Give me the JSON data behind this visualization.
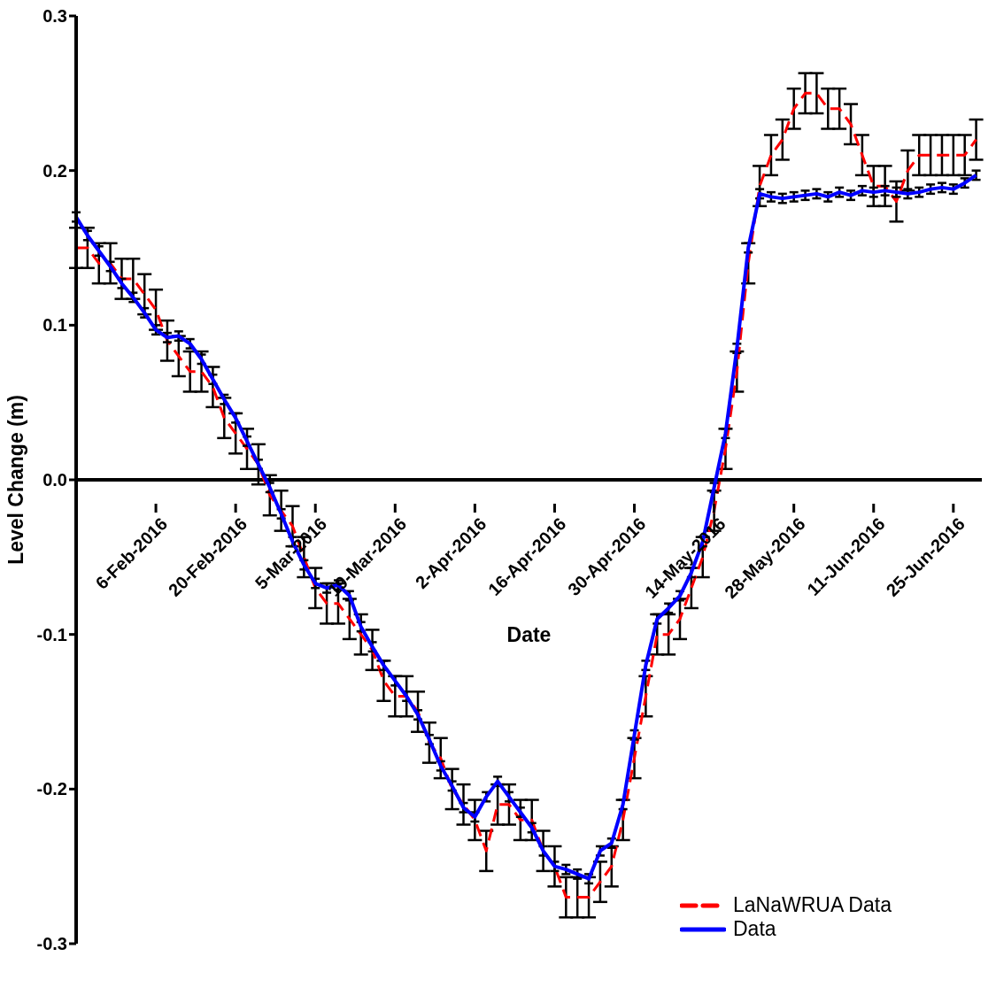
{
  "chart_data": {
    "type": "line",
    "xlabel": "Date",
    "ylabel": "Level Change (m)",
    "x": [
      "2016-01-23",
      "2016-01-25",
      "2016-01-27",
      "2016-01-29",
      "2016-01-31",
      "2016-02-02",
      "2016-02-04",
      "2016-02-06",
      "2016-02-08",
      "2016-02-10",
      "2016-02-12",
      "2016-02-14",
      "2016-02-16",
      "2016-02-18",
      "2016-02-20",
      "2016-02-22",
      "2016-02-24",
      "2016-02-26",
      "2016-02-28",
      "2016-03-01",
      "2016-03-03",
      "2016-03-05",
      "2016-03-07",
      "2016-03-09",
      "2016-03-11",
      "2016-03-13",
      "2016-03-15",
      "2016-03-17",
      "2016-03-19",
      "2016-03-21",
      "2016-03-23",
      "2016-03-25",
      "2016-03-27",
      "2016-03-29",
      "2016-03-31",
      "2016-04-02",
      "2016-04-04",
      "2016-04-06",
      "2016-04-08",
      "2016-04-10",
      "2016-04-12",
      "2016-04-14",
      "2016-04-16",
      "2016-04-18",
      "2016-04-20",
      "2016-04-22",
      "2016-04-24",
      "2016-04-26",
      "2016-04-28",
      "2016-04-30",
      "2016-05-02",
      "2016-05-04",
      "2016-05-06",
      "2016-05-08",
      "2016-05-10",
      "2016-05-12",
      "2016-05-14",
      "2016-05-16",
      "2016-05-18",
      "2016-05-20",
      "2016-05-22",
      "2016-05-24",
      "2016-05-26",
      "2016-05-28",
      "2016-05-30",
      "2016-06-01",
      "2016-06-03",
      "2016-06-05",
      "2016-06-07",
      "2016-06-09",
      "2016-06-11",
      "2016-06-13",
      "2016-06-15",
      "2016-06-17",
      "2016-06-19",
      "2016-06-21",
      "2016-06-23",
      "2016-06-25",
      "2016-06-27",
      "2016-06-29"
    ],
    "series": [
      {
        "name": "LaNaWRUA Data",
        "color": "#ff0000",
        "line_style": "dashed",
        "values": [
          0.15,
          0.15,
          0.14,
          0.14,
          0.13,
          0.13,
          0.12,
          0.11,
          0.09,
          0.08,
          0.07,
          0.07,
          0.06,
          0.04,
          0.03,
          0.02,
          0.01,
          -0.01,
          -0.02,
          -0.03,
          -0.05,
          -0.07,
          -0.08,
          -0.08,
          -0.09,
          -0.1,
          -0.11,
          -0.13,
          -0.14,
          -0.14,
          -0.15,
          -0.17,
          -0.18,
          -0.2,
          -0.21,
          -0.22,
          -0.24,
          -0.21,
          -0.21,
          -0.22,
          -0.22,
          -0.24,
          -0.25,
          -0.27,
          -0.27,
          -0.27,
          -0.26,
          -0.25,
          -0.22,
          -0.18,
          -0.14,
          -0.1,
          -0.1,
          -0.09,
          -0.07,
          -0.05,
          -0.02,
          0.02,
          0.07,
          0.14,
          0.19,
          0.21,
          0.22,
          0.24,
          0.25,
          0.25,
          0.24,
          0.24,
          0.23,
          0.21,
          0.19,
          0.19,
          0.18,
          0.2,
          0.21,
          0.21,
          0.21,
          0.21,
          0.21,
          0.22
        ],
        "errors": [
          0.013,
          0.013,
          0.013,
          0.013,
          0.013,
          0.013,
          0.013,
          0.013,
          0.013,
          0.013,
          0.013,
          0.013,
          0.013,
          0.013,
          0.013,
          0.013,
          0.013,
          0.013,
          0.013,
          0.013,
          0.013,
          0.013,
          0.013,
          0.013,
          0.013,
          0.013,
          0.013,
          0.013,
          0.013,
          0.013,
          0.013,
          0.013,
          0.013,
          0.013,
          0.013,
          0.013,
          0.013,
          0.013,
          0.013,
          0.013,
          0.013,
          0.013,
          0.013,
          0.013,
          0.013,
          0.013,
          0.013,
          0.013,
          0.013,
          0.013,
          0.013,
          0.013,
          0.013,
          0.013,
          0.013,
          0.013,
          0.013,
          0.013,
          0.013,
          0.013,
          0.013,
          0.013,
          0.013,
          0.013,
          0.013,
          0.013,
          0.013,
          0.013,
          0.013,
          0.013,
          0.013,
          0.013,
          0.013,
          0.013,
          0.013,
          0.013,
          0.013,
          0.013,
          0.013,
          0.013
        ]
      },
      {
        "name": "Data",
        "color": "#0000ff",
        "line_style": "solid",
        "values": [
          0.17,
          0.158,
          0.148,
          0.138,
          0.127,
          0.118,
          0.108,
          0.097,
          0.092,
          0.093,
          0.088,
          0.078,
          0.065,
          0.052,
          0.04,
          0.025,
          0.01,
          -0.005,
          -0.022,
          -0.04,
          -0.055,
          -0.067,
          -0.07,
          -0.068,
          -0.075,
          -0.095,
          -0.108,
          -0.12,
          -0.13,
          -0.14,
          -0.152,
          -0.168,
          -0.185,
          -0.198,
          -0.212,
          -0.218,
          -0.205,
          -0.195,
          -0.205,
          -0.215,
          -0.225,
          -0.24,
          -0.25,
          -0.252,
          -0.255,
          -0.258,
          -0.24,
          -0.235,
          -0.21,
          -0.165,
          -0.12,
          -0.09,
          -0.083,
          -0.075,
          -0.06,
          -0.04,
          -0.005,
          0.03,
          0.085,
          0.15,
          0.185,
          0.183,
          0.182,
          0.183,
          0.184,
          0.185,
          0.183,
          0.186,
          0.184,
          0.187,
          0.186,
          0.187,
          0.186,
          0.185,
          0.186,
          0.188,
          0.189,
          0.188,
          0.192,
          0.197
        ],
        "errors": [
          0.003,
          0.003,
          0.003,
          0.003,
          0.003,
          0.003,
          0.003,
          0.003,
          0.003,
          0.003,
          0.003,
          0.003,
          0.003,
          0.003,
          0.003,
          0.003,
          0.003,
          0.003,
          0.003,
          0.003,
          0.003,
          0.003,
          0.003,
          0.003,
          0.003,
          0.003,
          0.003,
          0.003,
          0.003,
          0.003,
          0.003,
          0.003,
          0.003,
          0.003,
          0.003,
          0.003,
          0.003,
          0.003,
          0.003,
          0.003,
          0.003,
          0.003,
          0.003,
          0.003,
          0.003,
          0.003,
          0.003,
          0.003,
          0.003,
          0.003,
          0.003,
          0.003,
          0.003,
          0.003,
          0.003,
          0.003,
          0.003,
          0.003,
          0.003,
          0.003,
          0.003,
          0.003,
          0.003,
          0.003,
          0.003,
          0.003,
          0.003,
          0.003,
          0.003,
          0.003,
          0.003,
          0.003,
          0.003,
          0.003,
          0.003,
          0.003,
          0.003,
          0.003,
          0.003,
          0.003
        ]
      }
    ],
    "xlim": [
      "2016-01-23",
      "2016-06-30"
    ],
    "xticks": [
      {
        "value": "2016-02-06",
        "label": "6-Feb-2016"
      },
      {
        "value": "2016-02-20",
        "label": "20-Feb-2016"
      },
      {
        "value": "2016-03-05",
        "label": "5-Mar-2016"
      },
      {
        "value": "2016-03-19",
        "label": "19-Mar-2016"
      },
      {
        "value": "2016-04-02",
        "label": "2-Apr-2016"
      },
      {
        "value": "2016-04-16",
        "label": "16-Apr-2016"
      },
      {
        "value": "2016-04-30",
        "label": "30-Apr-2016"
      },
      {
        "value": "2016-05-14",
        "label": "14-May-2016"
      },
      {
        "value": "2016-05-28",
        "label": "28-May-2016"
      },
      {
        "value": "2016-06-11",
        "label": "11-Jun-2016"
      },
      {
        "value": "2016-06-25",
        "label": "25-Jun-2016"
      }
    ],
    "ylim": [
      -0.3,
      0.3
    ],
    "yticks": [
      -0.3,
      -0.2,
      -0.1,
      {
        "value": 0,
        "label": "0.0"
      },
      0.1,
      0.2,
      0.3
    ],
    "grid": false,
    "legend": "bottom right",
    "marker": "none"
  }
}
